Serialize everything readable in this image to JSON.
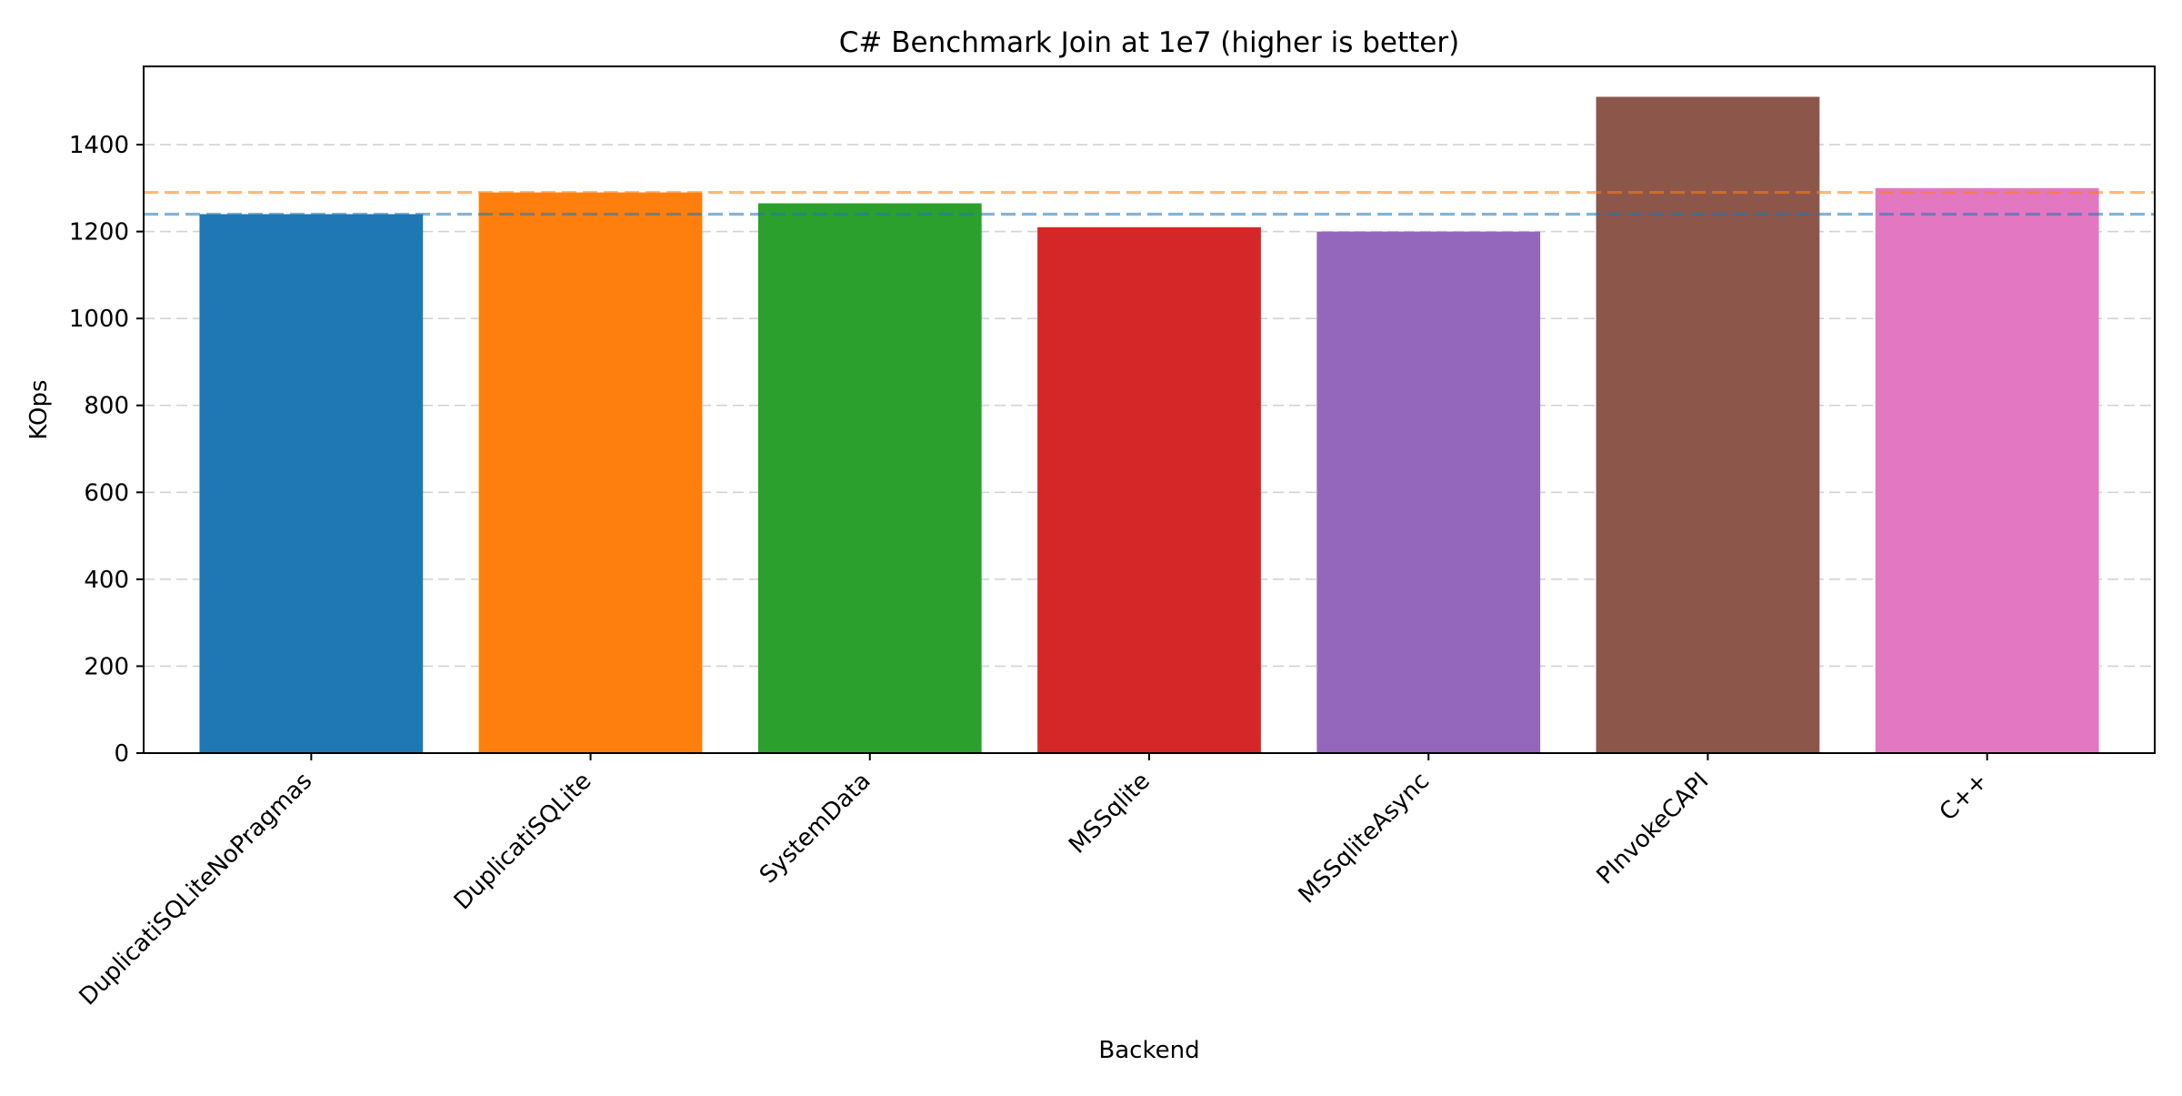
{
  "chart_data": {
    "type": "bar",
    "title": "C# Benchmark Join at 1e7 (higher is better)",
    "xlabel": "Backend",
    "ylabel": "KOps",
    "ylim": [
      0,
      1580
    ],
    "yticks": [
      0,
      200,
      400,
      600,
      800,
      1000,
      1200,
      1400
    ],
    "grid": "y-dashed",
    "categories": [
      "DuplicatiSQLiteNoPragmas",
      "DuplicatiSQLite",
      "SystemData",
      "MSSqlite",
      "MSSqliteAsync",
      "PInvokeCAPI",
      "C++"
    ],
    "values": [
      1240,
      1290,
      1265,
      1210,
      1200,
      1510,
      1300
    ],
    "colors": [
      "#1f77b4",
      "#ff7f0e",
      "#2ca02c",
      "#d62728",
      "#9467bd",
      "#8c564b",
      "#e377c2"
    ],
    "reference_lines": [
      {
        "value": 1290,
        "color": "#ff7f0e"
      },
      {
        "value": 1240,
        "color": "#1f77b4"
      }
    ]
  }
}
